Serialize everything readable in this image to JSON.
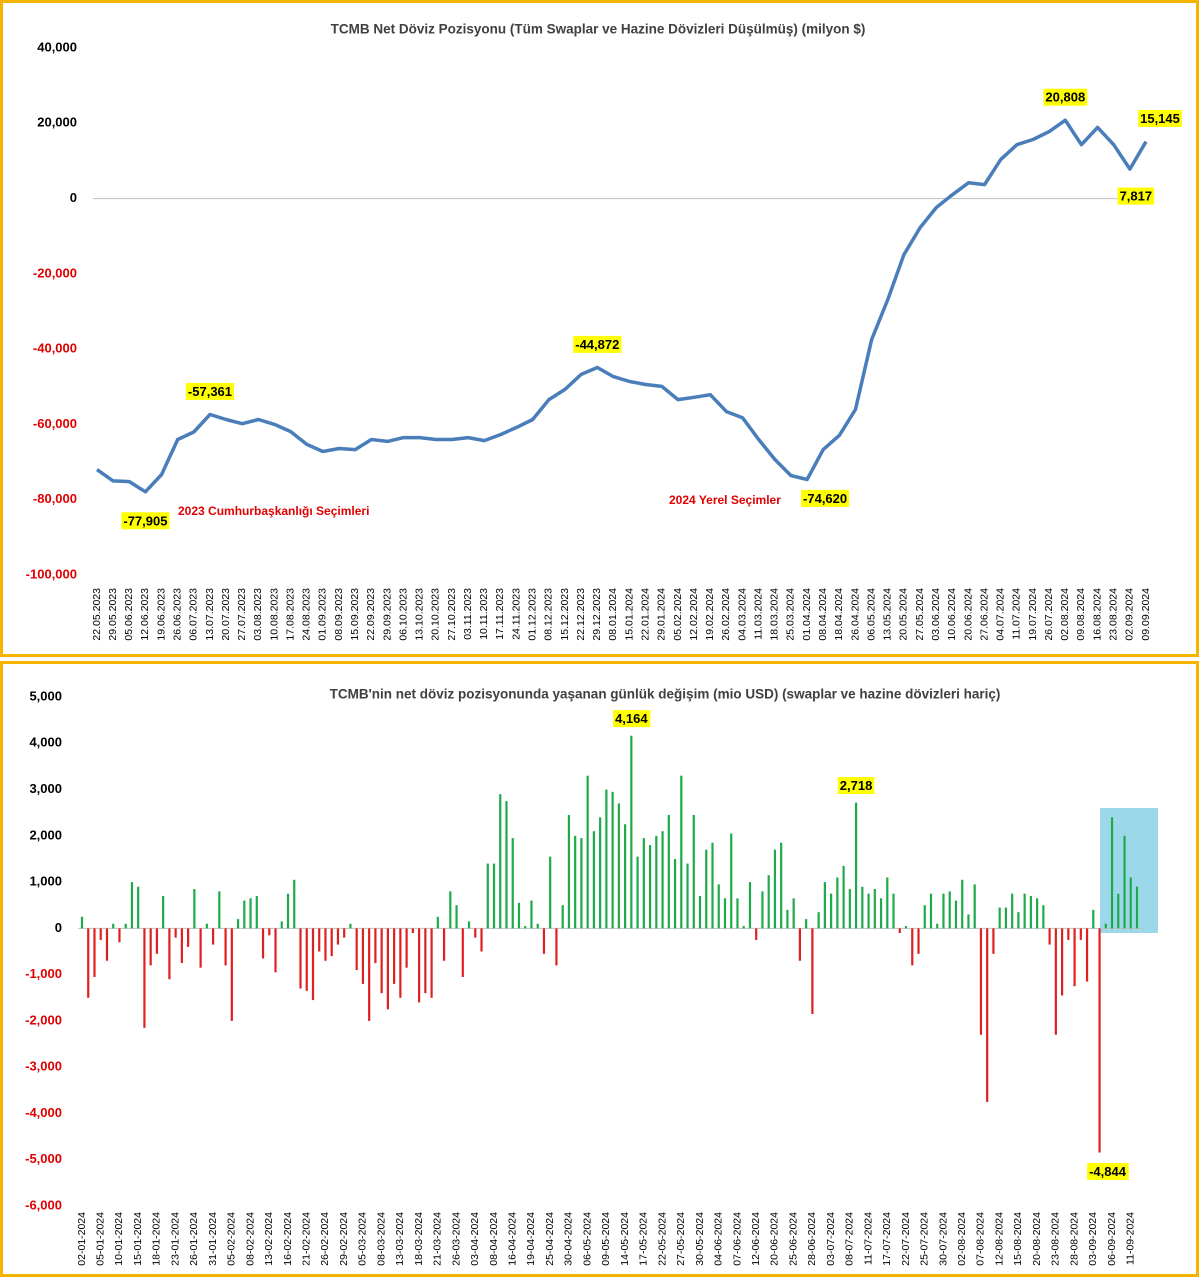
{
  "chart_data": [
    {
      "type": "line",
      "title": "TCMB Net Döviz Pozisyonu (Tüm Swaplar ve Hazine Dövizleri Düşülmüş) (milyon $)",
      "categories": [
        "22.05.2023",
        "29.05.2023",
        "05.06.2023",
        "12.06.2023",
        "19.06.2023",
        "26.06.2023",
        "06.07.2023",
        "13.07.2023",
        "20.07.2023",
        "27.07.2023",
        "03.08.2023",
        "10.08.2023",
        "17.08.2023",
        "24.08.2023",
        "01.09.2023",
        "08.09.2023",
        "15.09.2023",
        "22.09.2023",
        "29.09.2023",
        "06.10.2023",
        "13.10.2023",
        "20.10.2023",
        "27.10.2023",
        "03.11.2023",
        "10.11.2023",
        "17.11.2023",
        "24.11.2023",
        "01.12.2023",
        "08.12.2023",
        "15.12.2023",
        "22.12.2023",
        "29.12.2023",
        "08.01.2024",
        "15.01.2024",
        "22.01.2024",
        "29.01.2024",
        "05.02.2024",
        "12.02.2024",
        "19.02.2024",
        "26.02.2024",
        "04.03.2024",
        "11.03.2024",
        "18.03.2024",
        "25.03.2024",
        "01.04.2024",
        "08.04.2024",
        "18.04.2024",
        "26.04.2024",
        "06.05.2024",
        "13.05.2024",
        "20.05.2024",
        "27.05.2024",
        "03.06.2024",
        "10.06.2024",
        "20.06.2024",
        "27.06.2024",
        "04.07.2024",
        "11.07.2024",
        "19.07.2024",
        "26.07.2024",
        "02.08.2024",
        "09.08.2024",
        "16.08.2024",
        "23.08.2024",
        "02.09.2024",
        "09.09.2024"
      ],
      "values": [
        -72000,
        -75000,
        -75200,
        -77905,
        -73300,
        -64000,
        -62000,
        -57361,
        -58700,
        -59800,
        -58700,
        -60000,
        -61900,
        -65300,
        -67200,
        -66400,
        -66700,
        -64000,
        -64500,
        -63500,
        -63500,
        -64000,
        -64000,
        -63500,
        -64300,
        -62700,
        -60800,
        -58700,
        -53400,
        -50700,
        -46700,
        -44872,
        -47300,
        -48600,
        -49400,
        -49900,
        -53400,
        -52800,
        -52100,
        -56600,
        -58200,
        -64000,
        -69300,
        -73600,
        -74620,
        -66700,
        -62900,
        -56000,
        -37500,
        -26800,
        -14900,
        -7700,
        -2400,
        1000,
        4200,
        3700,
        10400,
        14300,
        15700,
        17800,
        20808,
        14300,
        18900,
        14300,
        7817,
        15145
      ],
      "value_labels": [
        null,
        null,
        null,
        "-77,905",
        null,
        null,
        null,
        "-57,361",
        null,
        null,
        null,
        null,
        null,
        null,
        null,
        null,
        null,
        null,
        null,
        null,
        null,
        null,
        null,
        null,
        null,
        null,
        null,
        null,
        null,
        null,
        null,
        "-44,872",
        null,
        null,
        null,
        null,
        null,
        null,
        null,
        null,
        null,
        null,
        null,
        null,
        "-74,620",
        null,
        null,
        null,
        null,
        null,
        null,
        null,
        null,
        null,
        null,
        null,
        null,
        null,
        null,
        null,
        "20,808",
        null,
        null,
        null,
        "7,817",
        "15,145"
      ],
      "color": "#4a7ebb",
      "annotations": [
        "2023 Cumhurbaşkanlığı Seçimleri",
        "2024 Yerel Seçimler"
      ],
      "ylim": [
        -100000,
        40000
      ],
      "yticks": [
        {
          "value": 40000,
          "label": "40,000"
        },
        {
          "value": 20000,
          "label": "20,000"
        },
        0,
        {
          "value": -20000,
          "label": "-20,000"
        },
        {
          "value": -40000,
          "label": "-40,000"
        },
        {
          "value": -60000,
          "label": "-60,000"
        },
        {
          "value": -80000,
          "label": "-80,000"
        },
        {
          "value": -100000,
          "label": "-100,000"
        }
      ],
      "grid": false
    },
    {
      "type": "bar",
      "title": "TCMB'nin net döviz pozisyonunda yaşanan günlük değişim (mio USD) (swaplar ve hazine dövizleri hariç)",
      "categories": [
        "02-01-2024",
        null,
        null,
        "05-01-2024",
        null,
        null,
        "10-01-2024",
        null,
        null,
        "15-01-2024",
        null,
        null,
        "18-01-2024",
        null,
        null,
        "23-01-2024",
        null,
        null,
        "26-01-2024",
        null,
        null,
        "31-01-2024",
        null,
        null,
        "05-02-2024",
        null,
        null,
        "08-02-2024",
        null,
        null,
        "13-02-2024",
        null,
        null,
        "16-02-2024",
        null,
        null,
        "21-02-2024",
        null,
        null,
        "26-02-2024",
        null,
        null,
        "29-02-2024",
        null,
        null,
        "05-03-2024",
        null,
        null,
        "08-03-2024",
        null,
        null,
        "13-03-2024",
        null,
        null,
        "18-03-2024",
        null,
        null,
        "21-03-2024",
        null,
        null,
        "26-03-2024",
        null,
        null,
        "03-04-2024",
        null,
        null,
        "08-04-2024",
        null,
        null,
        "16-04-2024",
        null,
        null,
        "19-04-2024",
        null,
        null,
        "25-04-2024",
        null,
        null,
        "30-04-2024",
        null,
        null,
        "06-05-2024",
        null,
        null,
        "09-05-2024",
        null,
        null,
        "14-05-2024",
        null,
        null,
        "17-05-2024",
        null,
        null,
        "22-05-2024",
        null,
        null,
        "27-05-2024",
        null,
        null,
        "30-05-2024",
        null,
        null,
        "04-06-2024",
        null,
        null,
        "07-06-2024",
        null,
        null,
        "12-06-2024",
        null,
        null,
        "20-06-2024",
        null,
        null,
        "25-06-2024",
        null,
        null,
        "28-06-2024",
        null,
        null,
        "03-07-2024",
        null,
        null,
        "08-07-2024",
        null,
        null,
        "11-07-2024",
        null,
        null,
        "17-07-2024",
        null,
        null,
        "22-07-2024",
        null,
        null,
        "25-07-2024",
        null,
        null,
        "30-07-2024",
        null,
        null,
        "02-08-2024",
        null,
        null,
        "07-08-2024",
        null,
        null,
        "12-08-2024",
        null,
        null,
        "15-08-2024",
        null,
        null,
        "20-08-2024",
        null,
        null,
        "23-08-2024",
        null,
        null,
        "28-08-2024",
        null,
        null,
        "03-09-2024",
        null,
        null,
        "06-09-2024",
        null,
        null,
        "11-09-2024",
        null
      ],
      "values": [
        250,
        -1500,
        -1050,
        -250,
        -700,
        100,
        -300,
        100,
        1000,
        900,
        -2150,
        -800,
        -550,
        700,
        -1100,
        -200,
        -750,
        -400,
        850,
        -850,
        100,
        -350,
        800,
        -800,
        -2000,
        200,
        600,
        650,
        700,
        -650,
        -150,
        -950,
        150,
        750,
        1050,
        -1300,
        -1350,
        -1550,
        -500,
        -700,
        -600,
        -350,
        -200,
        100,
        -900,
        -1200,
        -2000,
        -750,
        -1400,
        -1750,
        -1200,
        -1500,
        -850,
        -100,
        -1600,
        -1400,
        -1500,
        250,
        -700,
        800,
        500,
        -1050,
        150,
        -200,
        -500,
        1400,
        1400,
        2900,
        2750,
        1950,
        550,
        50,
        600,
        100,
        -550,
        1550,
        -800,
        500,
        2450,
        2000,
        1950,
        3300,
        2100,
        2400,
        3000,
        2950,
        2700,
        2250,
        4164,
        1550,
        1950,
        1800,
        2000,
        2100,
        2450,
        1500,
        3300,
        1400,
        2450,
        700,
        1700,
        1850,
        950,
        650,
        2050,
        650,
        50,
        1000,
        -250,
        800,
        1150,
        1700,
        1850,
        400,
        650,
        -700,
        200,
        -1850,
        350,
        1000,
        750,
        1100,
        1350,
        850,
        2718,
        900,
        750,
        850,
        650,
        1100,
        750,
        -100,
        50,
        -800,
        -550,
        500,
        750,
        100,
        750,
        800,
        600,
        1050,
        300,
        950,
        -2300,
        -3750,
        -550,
        450,
        450,
        750,
        350,
        750,
        700,
        650,
        500,
        -350,
        -2300,
        -1450,
        -250,
        -1250,
        -250,
        -1150,
        400,
        -4844,
        100,
        2400,
        750,
        2000,
        1100,
        900
      ],
      "value_labels": [
        null,
        null,
        null,
        null,
        null,
        null,
        null,
        null,
        null,
        null,
        null,
        null,
        null,
        null,
        null,
        null,
        null,
        null,
        null,
        null,
        null,
        null,
        null,
        null,
        null,
        null,
        null,
        null,
        null,
        null,
        null,
        null,
        null,
        null,
        null,
        null,
        null,
        null,
        null,
        null,
        null,
        null,
        null,
        null,
        null,
        null,
        null,
        null,
        null,
        null,
        null,
        null,
        null,
        null,
        null,
        null,
        null,
        null,
        null,
        null,
        null,
        null,
        null,
        null,
        null,
        null,
        null,
        null,
        null,
        null,
        null,
        null,
        null,
        null,
        null,
        null,
        null,
        null,
        null,
        null,
        null,
        null,
        null,
        null,
        null,
        null,
        null,
        null,
        "4,164",
        null,
        null,
        null,
        null,
        null,
        null,
        null,
        null,
        null,
        null,
        null,
        null,
        null,
        null,
        null,
        null,
        null,
        null,
        null,
        null,
        null,
        null,
        null,
        null,
        null,
        null,
        null,
        null,
        null,
        null,
        null,
        null,
        null,
        null,
        null,
        "2,718",
        null,
        null,
        null,
        null,
        null,
        null,
        null,
        null,
        null,
        null,
        null,
        null,
        null,
        null,
        null,
        null,
        null,
        null,
        null,
        null,
        null,
        null,
        null,
        null,
        null,
        null,
        null,
        null,
        null,
        null,
        null,
        null,
        null,
        null,
        null,
        null,
        null,
        null,
        "-4,844",
        null,
        null,
        null,
        null,
        null,
        null
      ],
      "positive_color": "#1faa4a",
      "negative_color": "#e02020",
      "ylim": [
        -6000,
        5000
      ],
      "yticks": [
        {
          "value": 5000,
          "label": "5,000"
        },
        {
          "value": 4000,
          "label": "4,000"
        },
        {
          "value": 3000,
          "label": "3,000"
        },
        {
          "value": 2000,
          "label": "2,000"
        },
        {
          "value": 1000,
          "label": "1,000"
        },
        0,
        {
          "value": -1000,
          "label": "-1,000"
        },
        {
          "value": -2000,
          "label": "-2,000"
        },
        {
          "value": -3000,
          "label": "-3,000"
        },
        {
          "value": -4000,
          "label": "-4,000"
        },
        {
          "value": -5000,
          "label": "-5,000"
        },
        {
          "value": -6000,
          "label": "-6,000"
        }
      ],
      "grid": false
    }
  ]
}
